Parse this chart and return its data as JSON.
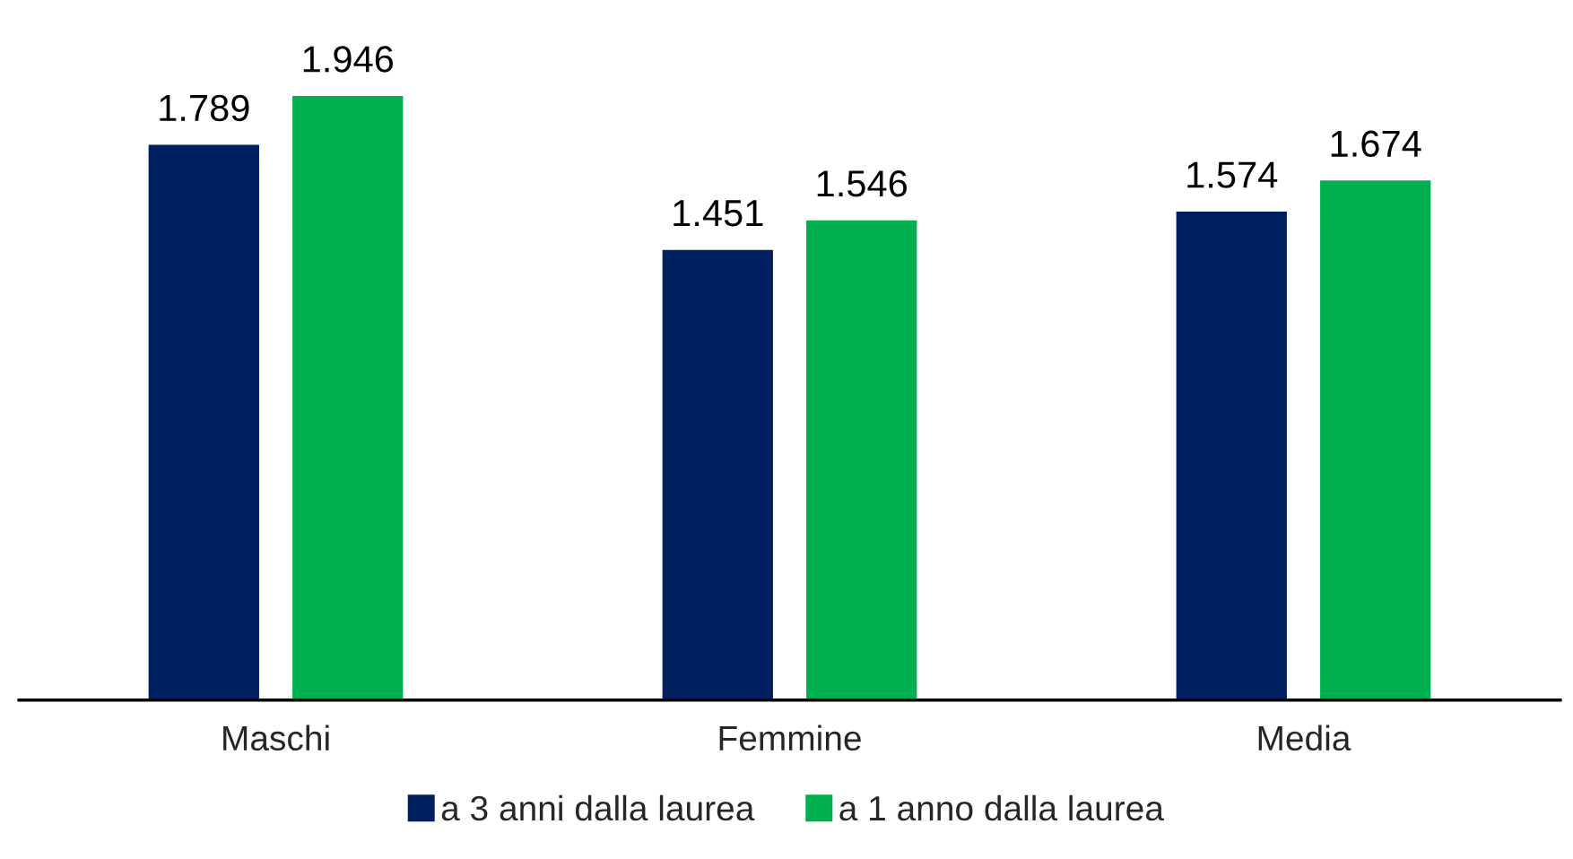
{
  "chart_data": {
    "type": "bar",
    "categories": [
      "Maschi",
      "Femmine",
      "Media"
    ],
    "series": [
      {
        "name": "a 3 anni dalla laurea",
        "color": "#002060",
        "values": [
          1789,
          1451,
          1574
        ],
        "value_labels": [
          "1.789",
          "1.451",
          "1.574"
        ]
      },
      {
        "name": "a 1 anno dalla laurea",
        "color": "#00b050",
        "values": [
          1946,
          1546,
          1674
        ],
        "value_labels": [
          "1.946",
          "1.546",
          "1.674"
        ]
      }
    ],
    "legend": "bottom",
    "grid": false,
    "tick_labels": "x"
  }
}
